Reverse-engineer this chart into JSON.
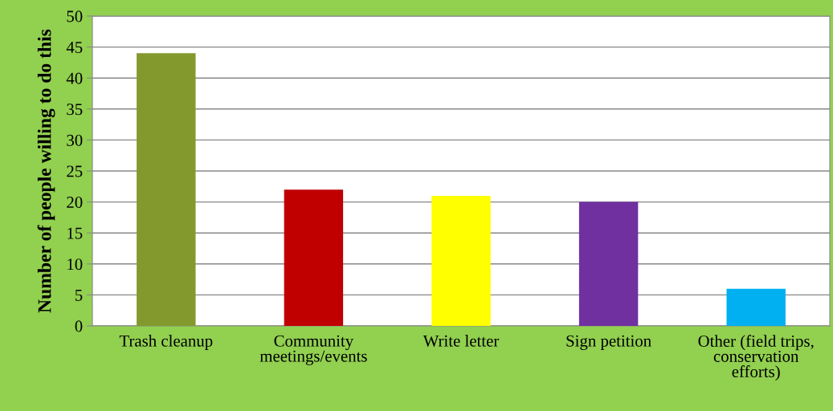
{
  "chart_data": {
    "type": "bar",
    "ylabel": "Number of people willing to do this",
    "categories": [
      "Trash cleanup",
      "Community\nmeetings/events",
      "Write letter",
      "Sign petition",
      "Other (field trips,\nconservation\nefforts)"
    ],
    "values": [
      44,
      22,
      21,
      20,
      6
    ],
    "colors": [
      "#84992d",
      "#c00000",
      "#ffff00",
      "#7030a0",
      "#00b0f0"
    ],
    "ylim": [
      0,
      50
    ],
    "yticks": [
      0,
      5,
      10,
      15,
      20,
      25,
      30,
      35,
      40,
      45,
      50
    ],
    "grid": "y",
    "legend": false
  }
}
